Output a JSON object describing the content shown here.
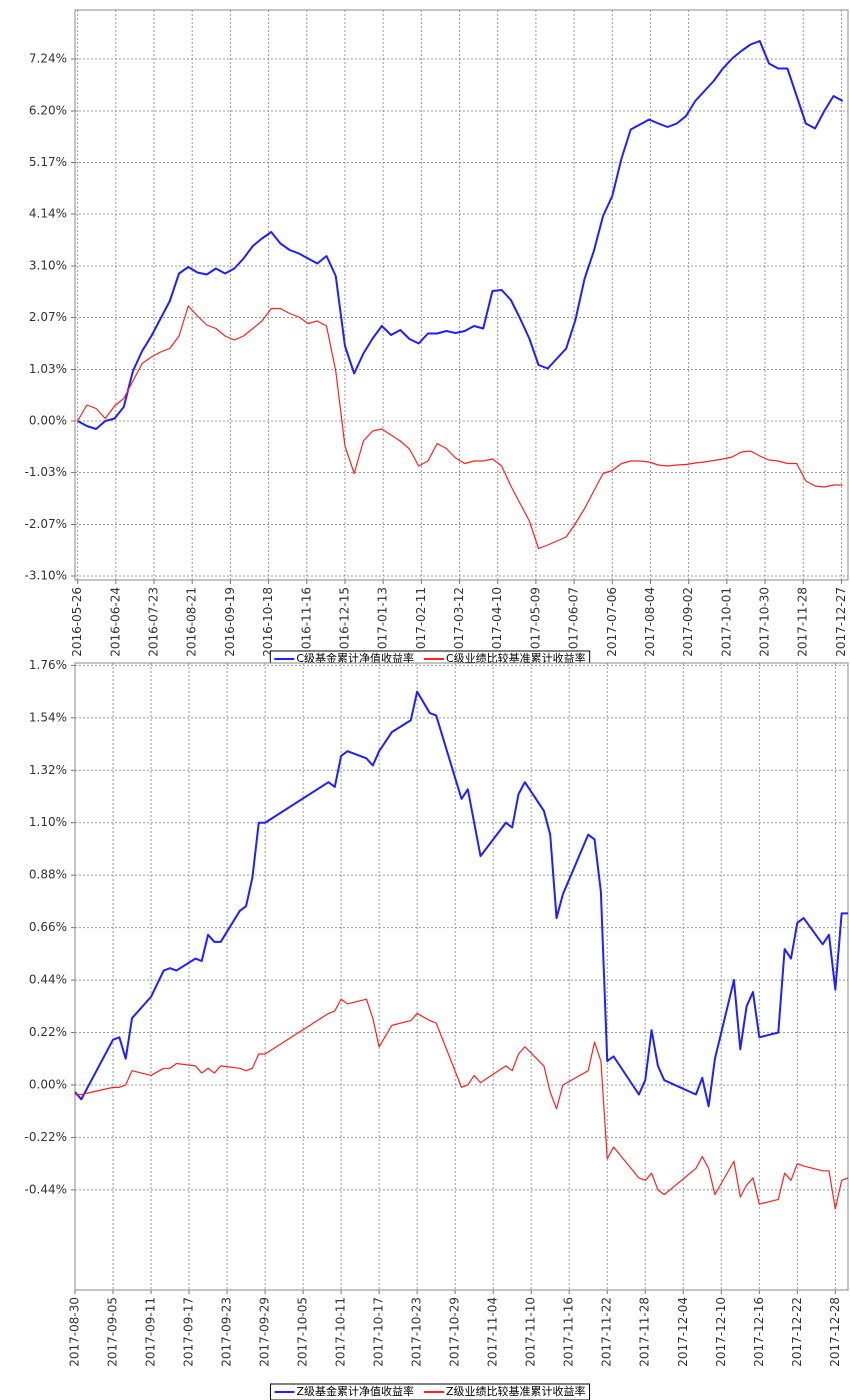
{
  "chart_data": [
    {
      "type": "line",
      "x": [
        "2016-05-26",
        "2016-06-02",
        "2016-06-09",
        "2016-06-16",
        "2016-06-23",
        "2016-06-30",
        "2016-07-07",
        "2016-07-14",
        "2016-07-21",
        "2016-07-28",
        "2016-08-04",
        "2016-08-11",
        "2016-08-18",
        "2016-08-25",
        "2016-09-01",
        "2016-09-08",
        "2016-09-15",
        "2016-09-22",
        "2016-09-29",
        "2016-10-06",
        "2016-10-13",
        "2016-10-20",
        "2016-10-27",
        "2016-11-03",
        "2016-11-10",
        "2016-11-17",
        "2016-11-24",
        "2016-12-01",
        "2016-12-08",
        "2016-12-15",
        "2016-12-22",
        "2016-12-29",
        "2017-01-05",
        "2017-01-12",
        "2017-01-19",
        "2017-01-26",
        "2017-02-02",
        "2017-02-09",
        "2017-02-16",
        "2017-02-23",
        "2017-03-02",
        "2017-03-09",
        "2017-03-16",
        "2017-03-23",
        "2017-03-30",
        "2017-04-06",
        "2017-04-13",
        "2017-04-20",
        "2017-04-27",
        "2017-05-04",
        "2017-05-11",
        "2017-05-18",
        "2017-05-25",
        "2017-06-01",
        "2017-06-08",
        "2017-06-15",
        "2017-06-22",
        "2017-06-29",
        "2017-07-06",
        "2017-07-13",
        "2017-07-20",
        "2017-07-27",
        "2017-08-03",
        "2017-08-10",
        "2017-08-17",
        "2017-08-24",
        "2017-08-31",
        "2017-09-07",
        "2017-09-14",
        "2017-09-21",
        "2017-09-28",
        "2017-10-05",
        "2017-10-12",
        "2017-10-19",
        "2017-10-26",
        "2017-11-02",
        "2017-11-09",
        "2017-11-16",
        "2017-11-23",
        "2017-11-30",
        "2017-12-07",
        "2017-12-14",
        "2017-12-21",
        "2017-12-28"
      ],
      "series": [
        {
          "name": "C级基金累计净值收益率",
          "color": "#1f1fff",
          "values": [
            0,
            -0.1,
            -0.16,
            0,
            0.05,
            0.28,
            1.0,
            1.4,
            1.7,
            2.05,
            2.4,
            2.95,
            3.08,
            2.97,
            2.93,
            3.05,
            2.95,
            3.05,
            3.25,
            3.5,
            3.65,
            3.78,
            3.55,
            3.42,
            3.35,
            3.25,
            3.15,
            3.3,
            2.9,
            1.5,
            0.95,
            1.35,
            1.65,
            1.9,
            1.72,
            1.82,
            1.64,
            1.55,
            1.75,
            1.75,
            1.8,
            1.76,
            1.8,
            1.9,
            1.85,
            2.6,
            2.62,
            2.42,
            2.05,
            1.65,
            1.12,
            1.05,
            1.25,
            1.45,
            2.02,
            2.85,
            3.4,
            4.1,
            4.5,
            5.25,
            5.83,
            5.93,
            6.03,
            5.95,
            5.88,
            5.95,
            6.1,
            6.4,
            6.6,
            6.8,
            7.05,
            7.25,
            7.4,
            7.53,
            7.6,
            7.15,
            7.05,
            7.05,
            6.5,
            5.95,
            5.85,
            6.2,
            6.5,
            6.4
          ]
        },
        {
          "name": "C级业绩比较基准累计收益率",
          "color": "#ff2020",
          "values": [
            0,
            0.32,
            0.25,
            0.05,
            0.3,
            0.45,
            0.8,
            1.15,
            1.28,
            1.38,
            1.45,
            1.7,
            2.3,
            2.1,
            1.92,
            1.85,
            1.7,
            1.62,
            1.7,
            1.85,
            2.0,
            2.25,
            2.25,
            2.15,
            2.08,
            1.95,
            2.0,
            1.9,
            1.0,
            -0.5,
            -1.05,
            -0.4,
            -0.2,
            -0.16,
            -0.28,
            -0.4,
            -0.56,
            -0.9,
            -0.8,
            -0.45,
            -0.55,
            -0.74,
            -0.85,
            -0.8,
            -0.8,
            -0.76,
            -0.9,
            -1.3,
            -1.65,
            -2.0,
            -2.55,
            -2.48,
            -2.4,
            -2.32,
            -2.05,
            -1.75,
            -1.4,
            -1.05,
            -0.99,
            -0.85,
            -0.8,
            -0.8,
            -0.82,
            -0.88,
            -0.9,
            -0.88,
            -0.87,
            -0.84,
            -0.82,
            -0.79,
            -0.76,
            -0.72,
            -0.62,
            -0.6,
            -0.7,
            -0.78,
            -0.8,
            -0.85,
            -0.85,
            -1.2,
            -1.3,
            -1.32,
            -1.28,
            -1.28
          ]
        }
      ],
      "xlim": [
        "2016-05-24",
        "2018-01-01"
      ],
      "xticks": [
        "2016-05-26",
        "2016-06-24",
        "2016-07-23",
        "2016-08-21",
        "2016-09-19",
        "2016-10-18",
        "2016-11-16",
        "2016-12-15",
        "2017-01-13",
        "2017-02-11",
        "2017-03-12",
        "2017-04-10",
        "2017-05-09",
        "2017-06-07",
        "2017-07-06",
        "2017-08-04",
        "2017-09-02",
        "2017-10-01",
        "2017-10-30",
        "2017-11-28",
        "2017-12-27"
      ],
      "ylim": [
        -3.18,
        8.22
      ],
      "yticks": [
        {
          "value": 7.24,
          "label": "7.24%"
        },
        {
          "value": 6.2,
          "label": "6.20%"
        },
        {
          "value": 5.17,
          "label": "5.17%"
        },
        {
          "value": 4.14,
          "label": "4.14%"
        },
        {
          "value": 3.1,
          "label": "3.10%"
        },
        {
          "value": 2.07,
          "label": "2.07%"
        },
        {
          "value": 1.03,
          "label": "1.03%"
        },
        {
          "value": 0,
          "label": "0.00%"
        },
        {
          "value": -1.03,
          "label": "-1.03%"
        },
        {
          "value": -2.07,
          "label": "-2.07%"
        },
        {
          "value": -3.1,
          "label": "-3.10%"
        }
      ],
      "grid": true,
      "legend": "bottom"
    },
    {
      "type": "line",
      "x": [
        "2017-08-30",
        "2017-08-31",
        "2017-09-05",
        "2017-09-06",
        "2017-09-07",
        "2017-09-08",
        "2017-09-11",
        "2017-09-13",
        "2017-09-14",
        "2017-09-15",
        "2017-09-18",
        "2017-09-19",
        "2017-09-20",
        "2017-09-21",
        "2017-09-22",
        "2017-09-25",
        "2017-09-26",
        "2017-09-27",
        "2017-09-28",
        "2017-09-29",
        "2017-10-09",
        "2017-10-10",
        "2017-10-11",
        "2017-10-12",
        "2017-10-15",
        "2017-10-16",
        "2017-10-17",
        "2017-10-19",
        "2017-10-22",
        "2017-10-23",
        "2017-10-25",
        "2017-10-26",
        "2017-10-30",
        "2017-10-31",
        "2017-11-01",
        "2017-11-02",
        "2017-11-06",
        "2017-11-07",
        "2017-11-08",
        "2017-11-09",
        "2017-11-12",
        "2017-11-13",
        "2017-11-14",
        "2017-11-15",
        "2017-11-19",
        "2017-11-20",
        "2017-11-21",
        "2017-11-22",
        "2017-11-23",
        "2017-11-27",
        "2017-11-28",
        "2017-11-29",
        "2017-11-30",
        "2017-12-01",
        "2017-12-06",
        "2017-12-07",
        "2017-12-08",
        "2017-12-09",
        "2017-12-12",
        "2017-12-13",
        "2017-12-14",
        "2017-12-15",
        "2017-12-16",
        "2017-12-19",
        "2017-12-20",
        "2017-12-21",
        "2017-12-22",
        "2017-12-23",
        "2017-12-26",
        "2017-12-27",
        "2017-12-28",
        "2017-12-29",
        "2017-12-30"
      ],
      "series": [
        {
          "name": "Z级基金累计净值收益率",
          "color": "#1f1fff",
          "values": [
            -0.03,
            -0.06,
            0.19,
            0.2,
            0.11,
            0.28,
            0.37,
            0.48,
            0.49,
            0.48,
            0.53,
            0.52,
            0.63,
            0.6,
            0.6,
            0.73,
            0.75,
            0.87,
            1.1,
            1.1,
            1.27,
            1.25,
            1.38,
            1.4,
            1.37,
            1.34,
            1.4,
            1.48,
            1.53,
            1.65,
            1.56,
            1.55,
            1.2,
            1.24,
            1.1,
            0.96,
            1.1,
            1.08,
            1.22,
            1.27,
            1.15,
            1.05,
            0.7,
            0.8,
            1.05,
            1.03,
            0.81,
            0.1,
            0.12,
            -0.04,
            0.02,
            0.23,
            0.08,
            0.02,
            -0.04,
            0.03,
            -0.09,
            0.11,
            0.44,
            0.15,
            0.33,
            0.39,
            0.2,
            0.22,
            0.57,
            0.53,
            0.68,
            0.7,
            0.59,
            0.63,
            0.4,
            0.72,
            0.72
          ]
        },
        {
          "name": "Z级业绩比较基准累计收益率",
          "color": "#ff2020",
          "values": [
            -0.04,
            -0.04,
            -0.01,
            -0.01,
            0,
            0.06,
            0.04,
            0.07,
            0.07,
            0.09,
            0.08,
            0.05,
            0.07,
            0.05,
            0.08,
            0.07,
            0.06,
            0.07,
            0.13,
            0.13,
            0.3,
            0.31,
            0.36,
            0.34,
            0.36,
            0.28,
            0.16,
            0.25,
            0.27,
            0.3,
            0.27,
            0.26,
            -0.01,
            0,
            0.04,
            0.01,
            0.08,
            0.06,
            0.13,
            0.16,
            0.08,
            -0.03,
            -0.1,
            0,
            0.06,
            0.18,
            0.1,
            -0.31,
            -0.26,
            -0.39,
            -0.4,
            -0.37,
            -0.44,
            -0.46,
            -0.35,
            -0.3,
            -0.35,
            -0.46,
            -0.32,
            -0.47,
            -0.42,
            -0.39,
            -0.5,
            -0.48,
            -0.37,
            -0.4,
            -0.33,
            -0.34,
            -0.36,
            -0.36,
            -0.52,
            -0.4,
            -0.39
          ]
        }
      ],
      "xlim": [
        "2017-08-30",
        "2017-12-30"
      ],
      "xticks": [
        "2017-08-30",
        "2017-09-05",
        "2017-09-11",
        "2017-09-17",
        "2017-09-23",
        "2017-09-29",
        "2017-10-05",
        "2017-10-11",
        "2017-10-17",
        "2017-10-23",
        "2017-10-29",
        "2017-11-04",
        "2017-11-10",
        "2017-11-16",
        "2017-11-22",
        "2017-11-28",
        "2017-12-04",
        "2017-12-10",
        "2017-12-16",
        "2017-12-22",
        "2017-12-28"
      ],
      "ylim": [
        -0.86,
        1.77
      ],
      "yticks": [
        {
          "value": 1.76,
          "label": "1.76%"
        },
        {
          "value": 1.54,
          "label": "1.54%"
        },
        {
          "value": 1.32,
          "label": "1.32%"
        },
        {
          "value": 1.1,
          "label": "1.10%"
        },
        {
          "value": 0.88,
          "label": "0.88%"
        },
        {
          "value": 0.66,
          "label": "0.66%"
        },
        {
          "value": 0.44,
          "label": "0.44%"
        },
        {
          "value": 0.22,
          "label": "0.22%"
        },
        {
          "value": 0,
          "label": "0.00%"
        },
        {
          "value": -0.22,
          "label": "-0.22%"
        },
        {
          "value": -0.44,
          "label": "-0.44%"
        }
      ],
      "grid": true,
      "legend": "bottom"
    }
  ]
}
